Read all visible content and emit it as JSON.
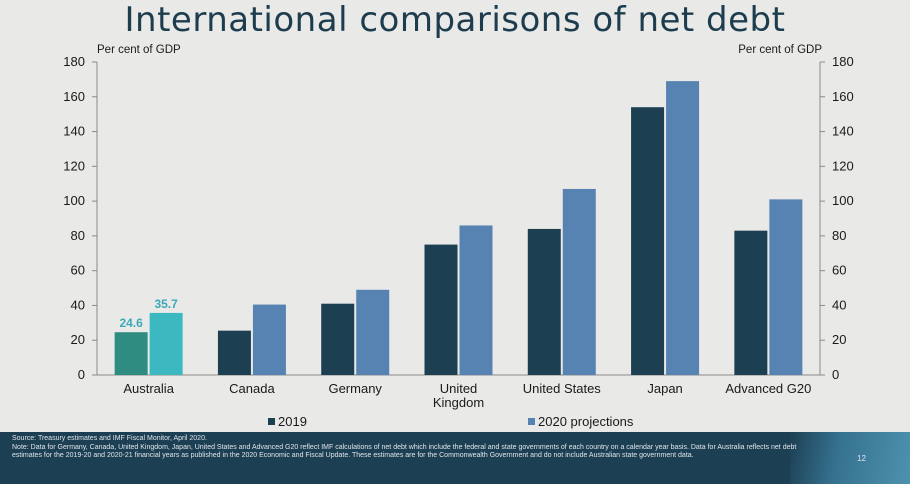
{
  "title": "International comparisons of net debt",
  "chart_data": {
    "type": "bar",
    "categories": [
      "Australia",
      "Canada",
      "Germany",
      "United Kingdom",
      "United States",
      "Japan",
      "Advanced G20"
    ],
    "category_lines": [
      [
        "Australia"
      ],
      [
        "Canada"
      ],
      [
        "Germany"
      ],
      [
        "United",
        "Kingdom"
      ],
      [
        "United States"
      ],
      [
        "Japan"
      ],
      [
        "Advanced G20"
      ]
    ],
    "series": [
      {
        "name": "2019",
        "values": [
          24.6,
          25.5,
          41,
          75,
          84,
          154,
          83
        ],
        "color": "#1c3f52"
      },
      {
        "name": "2020 projections",
        "values": [
          35.7,
          40.5,
          49,
          86,
          107,
          169,
          101
        ],
        "color": "#5683b2"
      }
    ],
    "highlight": {
      "category": "Australia",
      "colors": [
        "#2f8c80",
        "#3bb8c0"
      ],
      "labels": [
        "24.6",
        "35.7"
      ],
      "label_color": "#3aa9b8"
    },
    "ylabel_left": "Per cent of GDP",
    "ylabel_right": "Per cent of GDP",
    "ylim": [
      0,
      180
    ],
    "yticks": [
      0,
      20,
      40,
      60,
      80,
      100,
      120,
      140,
      160,
      180
    ],
    "legend_position": "bottom"
  },
  "footer": {
    "source": "Source: Treasury estimates and IMF Fiscal Monitor, April 2020.",
    "note": "Note: Data for Germany, Canada, United Kingdom, Japan, United States and Advanced G20 reflect IMF calculations of net debt which include the federal and state governments of each country on a calendar year basis. Data for Australia reflects net debt estimates for the 2019-20 and 2020-21 financial years as published in the 2020 Economic and Fiscal Update. These estimates are for the Commonwealth Government and do not include Australian state government data.",
    "page": "12"
  }
}
